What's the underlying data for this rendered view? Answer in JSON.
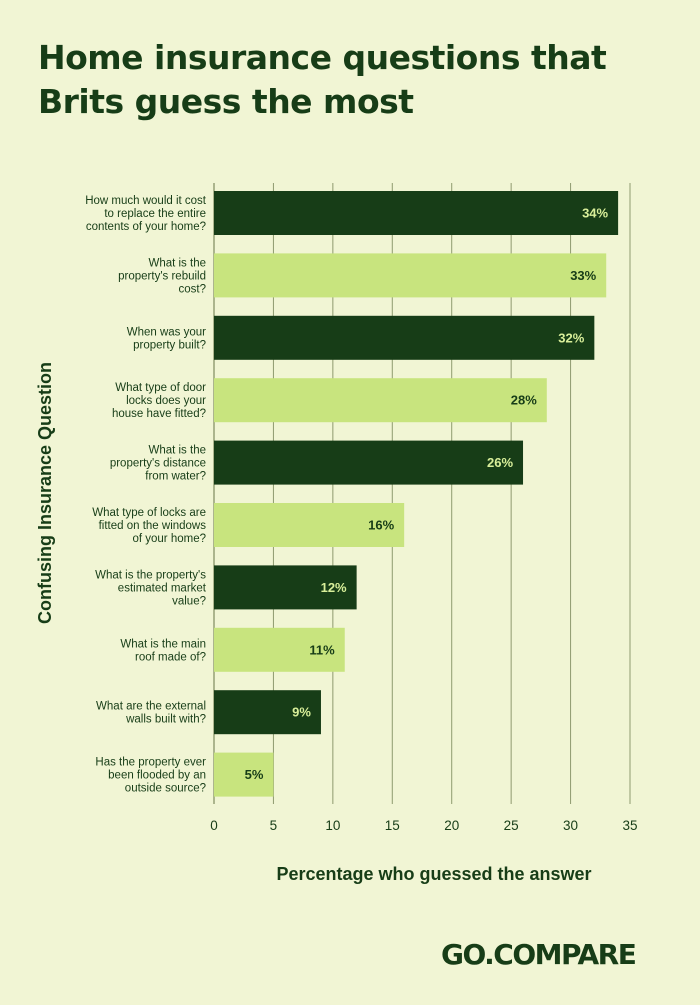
{
  "header": {
    "title": "Home insurance questions that Brits guess the most"
  },
  "brand": {
    "logo_text": "GO.COMPARE"
  },
  "colors": {
    "background": "#f1f5d4",
    "dark_bar": "#173d17",
    "light_bar": "#c8e47e",
    "dark_bar_label": "#d9ef9a",
    "light_bar_label": "#173d17",
    "grid": "#8e9a6f",
    "text": "#173d17"
  },
  "chart_data": {
    "type": "bar",
    "orientation": "horizontal",
    "categories": [
      "How much would it cost to replace the entire contents of your home?",
      "What is the property's rebuild cost?",
      "When was your property built?",
      "What type of door locks does your house have fitted?",
      "What is the property's distance from water?",
      "What type of locks are fitted on the windows of your home?",
      "What is the property's estimated market value?",
      "What is the main roof made of?",
      "What are the external walls built with?",
      "Has the property ever been flooded by an outside source?"
    ],
    "category_lines": [
      [
        "How much would it cost",
        "to replace the entire",
        "contents of your home?"
      ],
      [
        "What is the",
        "property's rebuild",
        "cost?"
      ],
      [
        "When was your",
        "property built?"
      ],
      [
        "What type of door",
        "locks does your",
        "house have fitted?"
      ],
      [
        "What is the",
        "property's distance",
        "from water?"
      ],
      [
        "What type of locks are",
        "fitted on the windows",
        "of your home?"
      ],
      [
        "What is the property's",
        "estimated market",
        "value?"
      ],
      [
        "What is the main",
        "roof made of?"
      ],
      [
        "What are the external",
        "walls built with?"
      ],
      [
        "Has the property ever",
        "been flooded by an",
        "outside source?"
      ]
    ],
    "values": [
      34,
      33,
      32,
      28,
      26,
      16,
      12,
      11,
      9,
      5
    ],
    "value_labels": [
      "34%",
      "33%",
      "32%",
      "28%",
      "26%",
      "16%",
      "12%",
      "11%",
      "9%",
      "5%"
    ],
    "xlabel": "Percentage who guessed the answer",
    "ylabel": "Confusing Insurance Question",
    "xlim": [
      0,
      35
    ],
    "xticks": [
      0,
      5,
      10,
      15,
      20,
      25,
      30,
      35
    ],
    "xtick_labels": [
      "0",
      "5",
      "10",
      "15",
      "20",
      "25",
      "30",
      "35"
    ],
    "grid": "vertical",
    "bar_color_pattern": "alternating dark/light green"
  }
}
